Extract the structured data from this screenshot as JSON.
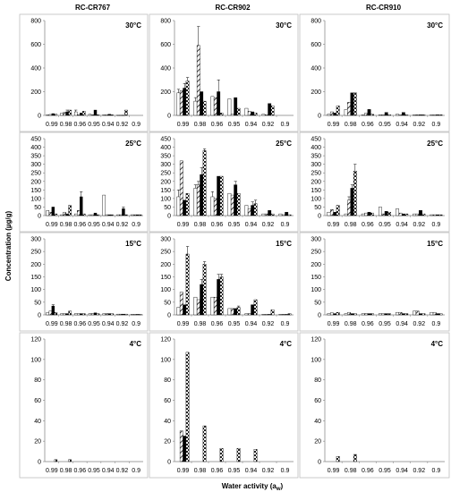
{
  "figure": {
    "ylabel": "Concentration (µg/g)",
    "xlabel": "Water activity (a",
    "xlabel_sub": "w",
    "xlabel_end": ")",
    "colors": {
      "frame": "#bfbfbf",
      "axis": "#7f7f7f",
      "bar_edge": "#000000",
      "fill_black": "#000000",
      "fill_white": "#ffffff"
    }
  },
  "chart_data": {
    "type": "bar",
    "categories": [
      "0.99",
      "0.98",
      "0.96",
      "0.95",
      "0.94",
      "0.92",
      "0.9"
    ],
    "series_patterns": [
      "white",
      "diagonal",
      "black",
      "checker"
    ],
    "columns": [
      "RC-CR767",
      "RC-CR902",
      "RC-CR910"
    ],
    "rows": [
      {
        "temp": "30°C",
        "ylim": [
          0,
          800
        ],
        "yticks": [
          "0",
          "200",
          "400",
          "600",
          "800"
        ]
      },
      {
        "temp": "25°C",
        "ylim": [
          0,
          450
        ],
        "yticks": [
          "0",
          "50",
          "100",
          "150",
          "200",
          "250",
          "300",
          "350",
          "400",
          "450"
        ]
      },
      {
        "temp": "15°C",
        "ylim": [
          0,
          300
        ],
        "yticks": [
          "0",
          "50",
          "100",
          "150",
          "200",
          "250",
          "300"
        ]
      },
      {
        "temp": "4°C",
        "ylim": [
          0,
          120
        ],
        "yticks": [
          "0",
          "20",
          "40",
          "60",
          "80",
          "100",
          "120"
        ]
      }
    ],
    "panels": [
      [
        {
          "values": [
            [
              5,
              8,
              15,
              10
            ],
            [
              20,
              25,
              30,
              45
            ],
            [
              30,
              5,
              20,
              35
            ],
            [
              10,
              5,
              45,
              5
            ],
            [
              5,
              5,
              10,
              5
            ],
            [
              2,
              2,
              2,
              45
            ],
            [
              0,
              0,
              0,
              0
            ]
          ],
          "errors": [
            [
              0,
              0,
              0,
              0
            ],
            [
              0,
              0,
              15,
              0
            ],
            [
              15,
              0,
              0,
              0
            ],
            [
              0,
              0,
              0,
              0
            ],
            [
              0,
              0,
              0,
              0
            ],
            [
              0,
              0,
              0,
              0
            ],
            [
              0,
              0,
              0,
              0
            ]
          ]
        },
        {
          "values": [
            [
              30,
              20,
              50,
              10
            ],
            [
              5,
              20,
              10,
              60
            ],
            [
              10,
              30,
              110,
              10
            ],
            [
              5,
              5,
              15,
              5
            ],
            [
              120,
              5,
              5,
              5
            ],
            [
              5,
              5,
              40,
              5
            ],
            [
              5,
              5,
              5,
              5
            ]
          ],
          "errors": [
            [
              0,
              0,
              0,
              0
            ],
            [
              0,
              0,
              0,
              0
            ],
            [
              0,
              0,
              30,
              0
            ],
            [
              0,
              0,
              0,
              0
            ],
            [
              0,
              0,
              0,
              0
            ],
            [
              0,
              0,
              10,
              0
            ],
            [
              0,
              0,
              0,
              0
            ]
          ]
        },
        {
          "values": [
            [
              10,
              15,
              35,
              10
            ],
            [
              5,
              5,
              5,
              15
            ],
            [
              5,
              5,
              5,
              5
            ],
            [
              5,
              5,
              8,
              5
            ],
            [
              5,
              5,
              5,
              5
            ],
            [
              3,
              3,
              3,
              3
            ],
            [
              2,
              2,
              2,
              2
            ]
          ],
          "errors": [
            [
              0,
              0,
              5,
              0
            ],
            [
              0,
              0,
              0,
              0
            ],
            [
              0,
              0,
              0,
              0
            ],
            [
              0,
              0,
              0,
              0
            ],
            [
              0,
              0,
              0,
              0
            ],
            [
              0,
              0,
              0,
              0
            ],
            [
              0,
              0,
              0,
              0
            ]
          ]
        },
        {
          "values": [
            [
              0,
              0,
              0,
              2
            ],
            [
              0,
              0,
              0,
              2
            ],
            [
              0,
              0,
              0,
              0
            ],
            [
              0,
              0,
              0,
              0
            ],
            [
              0,
              0,
              0,
              0
            ],
            [
              0,
              0,
              0,
              0
            ],
            [
              0,
              0,
              0,
              0
            ]
          ],
          "errors": [
            [
              0,
              0,
              0,
              0
            ],
            [
              0,
              0,
              0,
              0
            ],
            [
              0,
              0,
              0,
              0
            ],
            [
              0,
              0,
              0,
              0
            ],
            [
              0,
              0,
              0,
              0
            ],
            [
              0,
              0,
              0,
              0
            ],
            [
              0,
              0,
              0,
              0
            ]
          ]
        }
      ],
      [
        {
          "values": [
            [
              190,
              210,
              230,
              290
            ],
            [
              120,
              590,
              200,
              120
            ],
            [
              160,
              150,
              200,
              20
            ],
            [
              140,
              10,
              150,
              60
            ],
            [
              60,
              35,
              30,
              20
            ],
            [
              10,
              5,
              100,
              80
            ],
            [
              0,
              0,
              0,
              0
            ]
          ],
          "errors": [
            [
              30,
              0,
              40,
              30
            ],
            [
              30,
              160,
              0,
              0
            ],
            [
              0,
              0,
              100,
              0
            ],
            [
              0,
              0,
              0,
              0
            ],
            [
              0,
              0,
              0,
              0
            ],
            [
              0,
              0,
              0,
              0
            ],
            [
              0,
              0,
              0,
              0
            ]
          ]
        },
        {
          "values": [
            [
              110,
              320,
              90,
              130
            ],
            [
              160,
              180,
              240,
              380
            ],
            [
              110,
              100,
              230,
              230
            ],
            [
              130,
              120,
              180,
              130
            ],
            [
              60,
              40,
              60,
              70
            ],
            [
              10,
              10,
              30,
              10
            ],
            [
              10,
              5,
              20,
              5
            ]
          ],
          "errors": [
            [
              40,
              0,
              0,
              0
            ],
            [
              20,
              20,
              40,
              10
            ],
            [
              30,
              0,
              0,
              0
            ],
            [
              0,
              0,
              20,
              0
            ],
            [
              0,
              0,
              20,
              20
            ],
            [
              0,
              0,
              0,
              0
            ],
            [
              0,
              0,
              0,
              0
            ]
          ]
        },
        {
          "values": [
            [
              30,
              90,
              40,
              240
            ],
            [
              70,
              60,
              120,
              200
            ],
            [
              70,
              70,
              140,
              150
            ],
            [
              25,
              25,
              25,
              30
            ],
            [
              5,
              5,
              40,
              60
            ],
            [
              2,
              2,
              2,
              20
            ],
            [
              2,
              2,
              2,
              5
            ]
          ],
          "errors": [
            [
              0,
              0,
              0,
              30
            ],
            [
              0,
              0,
              20,
              10
            ],
            [
              0,
              0,
              20,
              10
            ],
            [
              0,
              0,
              0,
              5
            ],
            [
              0,
              0,
              0,
              0
            ],
            [
              0,
              0,
              0,
              0
            ],
            [
              0,
              0,
              0,
              0
            ]
          ]
        },
        {
          "values": [
            [
              0,
              30,
              25,
              107
            ],
            [
              0,
              0,
              0,
              35
            ],
            [
              0,
              0,
              0,
              13
            ],
            [
              0,
              0,
              0,
              13
            ],
            [
              0,
              0,
              0,
              12
            ],
            [
              0,
              0,
              0,
              0
            ],
            [
              0,
              0,
              0,
              0
            ]
          ],
          "errors": [
            [
              0,
              0,
              0,
              0
            ],
            [
              0,
              0,
              0,
              0
            ],
            [
              0,
              0,
              0,
              0
            ],
            [
              0,
              0,
              0,
              0
            ],
            [
              0,
              0,
              0,
              0
            ],
            [
              0,
              0,
              0,
              0
            ],
            [
              0,
              0,
              0,
              0
            ]
          ]
        }
      ],
      [
        {
          "values": [
            [
              10,
              30,
              20,
              80
            ],
            [
              50,
              110,
              190,
              190
            ],
            [
              5,
              20,
              50,
              10
            ],
            [
              5,
              5,
              25,
              5
            ],
            [
              10,
              5,
              25,
              5
            ],
            [
              5,
              5,
              5,
              5
            ],
            [
              5,
              5,
              5,
              5
            ]
          ],
          "errors": [
            [
              0,
              0,
              0,
              0
            ],
            [
              0,
              0,
              0,
              0
            ],
            [
              0,
              0,
              0,
              0
            ],
            [
              0,
              0,
              0,
              0
            ],
            [
              0,
              0,
              0,
              0
            ],
            [
              0,
              0,
              0,
              0
            ],
            [
              0,
              0,
              0,
              0
            ]
          ]
        },
        {
          "values": [
            [
              20,
              35,
              20,
              60
            ],
            [
              10,
              90,
              160,
              260
            ],
            [
              10,
              15,
              20,
              15
            ],
            [
              50,
              10,
              25,
              20
            ],
            [
              40,
              15,
              10,
              10
            ],
            [
              10,
              10,
              30,
              10
            ],
            [
              5,
              5,
              5,
              5
            ]
          ],
          "errors": [
            [
              0,
              0,
              0,
              0
            ],
            [
              0,
              20,
              20,
              40
            ],
            [
              0,
              0,
              0,
              0
            ],
            [
              0,
              0,
              0,
              0
            ],
            [
              0,
              0,
              0,
              0
            ],
            [
              0,
              0,
              0,
              0
            ],
            [
              0,
              0,
              0,
              0
            ]
          ]
        },
        {
          "values": [
            [
              5,
              8,
              5,
              10
            ],
            [
              5,
              10,
              5,
              5
            ],
            [
              5,
              5,
              5,
              5
            ],
            [
              5,
              5,
              5,
              5
            ],
            [
              10,
              10,
              5,
              5
            ],
            [
              15,
              15,
              5,
              5
            ],
            [
              10,
              10,
              5,
              5
            ]
          ],
          "errors": [
            [
              0,
              0,
              0,
              0
            ],
            [
              0,
              0,
              0,
              0
            ],
            [
              0,
              0,
              0,
              0
            ],
            [
              0,
              0,
              0,
              0
            ],
            [
              0,
              0,
              0,
              0
            ],
            [
              0,
              0,
              0,
              0
            ],
            [
              0,
              0,
              0,
              0
            ]
          ]
        },
        {
          "values": [
            [
              0,
              0,
              0,
              5
            ],
            [
              0,
              0,
              0,
              7
            ],
            [
              0,
              0,
              0,
              0
            ],
            [
              0,
              0,
              0,
              0
            ],
            [
              0,
              0,
              0,
              0
            ],
            [
              0,
              0,
              0,
              0
            ],
            [
              0,
              0,
              0,
              0
            ]
          ],
          "errors": [
            [
              0,
              0,
              0,
              0
            ],
            [
              0,
              0,
              0,
              0
            ],
            [
              0,
              0,
              0,
              0
            ],
            [
              0,
              0,
              0,
              0
            ],
            [
              0,
              0,
              0,
              0
            ],
            [
              0,
              0,
              0,
              0
            ],
            [
              0,
              0,
              0,
              0
            ]
          ]
        }
      ]
    ]
  }
}
